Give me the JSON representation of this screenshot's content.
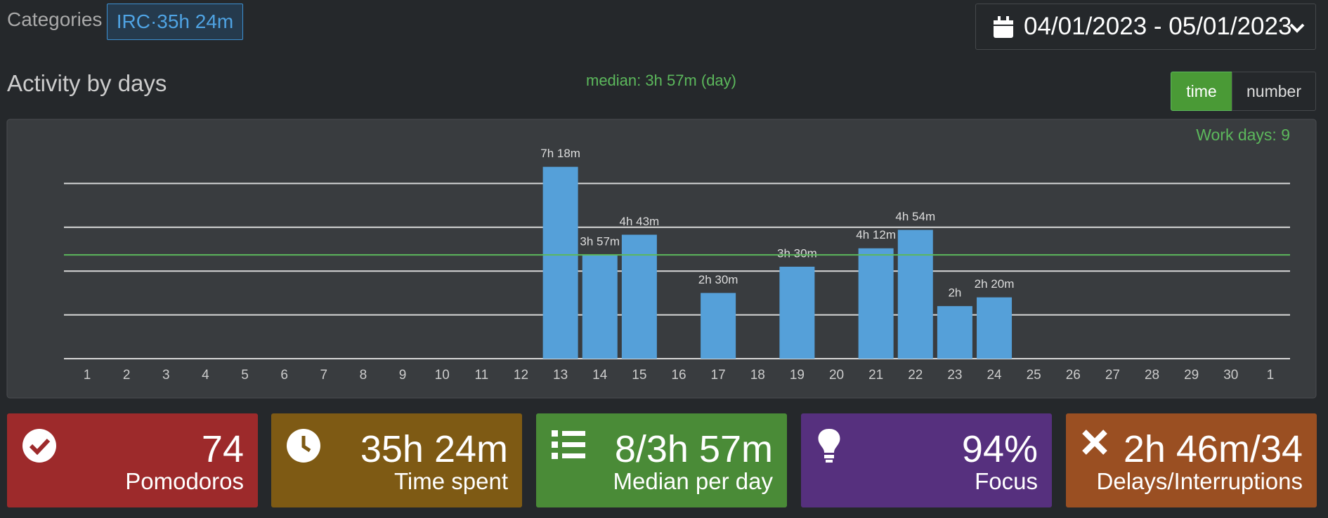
{
  "categories_label": "Categories",
  "tag": "IRC·35h 24m",
  "date_range": "04/01/2023 - 05/01/2023",
  "heading": "Activity by days",
  "toggle": [
    "time",
    "number"
  ],
  "chart_data": {
    "type": "bar",
    "color": "#55a0d9",
    "categories": [
      "1",
      "2",
      "3",
      "4",
      "5",
      "6",
      "7",
      "8",
      "9",
      "10",
      "11",
      "12",
      "13",
      "14",
      "15",
      "16",
      "17",
      "18",
      "19",
      "20",
      "21",
      "22",
      "23",
      "24",
      "25",
      "26",
      "27",
      "28",
      "29",
      "30",
      "1"
    ],
    "values": [
      null,
      null,
      null,
      null,
      null,
      null,
      null,
      null,
      null,
      null,
      null,
      null,
      438,
      237,
      283,
      null,
      150,
      null,
      210,
      null,
      252,
      294,
      120,
      140,
      null,
      null,
      null,
      null,
      null,
      null,
      null
    ],
    "value_labels": [
      null,
      null,
      null,
      null,
      null,
      null,
      null,
      null,
      null,
      null,
      null,
      null,
      "7h 18m",
      "3h 57m",
      "4h 43m",
      null,
      "2h 30m",
      null,
      "3h 30m",
      null,
      "4h 12m",
      "4h 54m",
      "2h",
      "2h 20m",
      null,
      null,
      null,
      null,
      null,
      null,
      null
    ],
    "ylim": [
      0,
      500
    ],
    "yticks": [
      0,
      100,
      200,
      300,
      400
    ],
    "grid": true,
    "median": {
      "value": 237,
      "label": "median: 3h 57m (day)",
      "color": "#5cb85c"
    },
    "annotation": "Work days: 9"
  },
  "cards": [
    {
      "value": "74",
      "label": "Pomodoros",
      "color": "#9d2a2b"
    },
    {
      "value": "35h 24m",
      "label": "Time spent",
      "color": "#7e5a14"
    },
    {
      "value": "8/3h 57m",
      "label": "Median per day",
      "color": "#4a8b37"
    },
    {
      "value": "94%",
      "label": "Focus",
      "color": "#56307e"
    },
    {
      "value": "2h 46m/34",
      "label": "Delays/Interruptions",
      "color": "#9a4f22"
    }
  ]
}
